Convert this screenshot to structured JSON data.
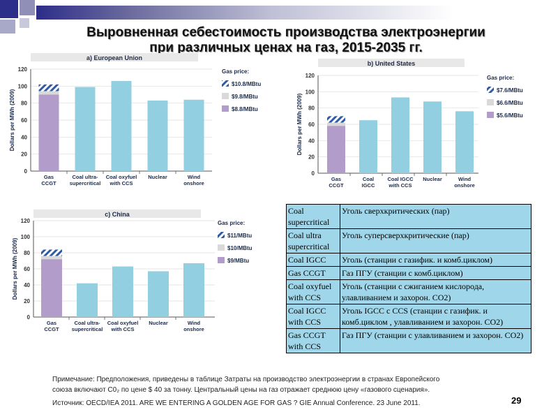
{
  "page": {
    "title_line1": "Выровненная себестоимость производства электроэнергии",
    "title_line2": "при различных ценах на газ, 2015-2035 гг.",
    "note_prefix": "Примечание: Предположения, приведены в таблице Затраты на производство электроэнергии в странах Европейского",
    "note_suffix": "союза включают С0₂ по цене $ 40 за тонну. Центральный цены на газ отражает среднюю цену «газового сценария».",
    "source": "Источник: OECD/IEA 2011. ARE WE ENTERING A GOLDEN AGE FOR GAS ? GIE Annual Conference. 23 June 2011.",
    "page_number": "29"
  },
  "colors": {
    "gas_bar": "#b29cc9",
    "other_bar": "#92cfe0",
    "hatch": "#2e5aa8",
    "mid_band": "#d9d9d9",
    "title_bg": "#e8e8e8"
  },
  "chart_data": [
    {
      "id": "eu",
      "type": "bar",
      "title": "a) European Union",
      "ylabel": "Dollars per MWh (2009)",
      "ylim": [
        0,
        120
      ],
      "yticks": [
        "0",
        "20",
        "40",
        "60",
        "80",
        "100",
        "120"
      ],
      "categories": [
        [
          "Gas",
          "CCGT"
        ],
        [
          "Coal ultra-",
          "supercritical"
        ],
        [
          "Coal oxyfuel",
          "with CCS"
        ],
        [
          "Nuclear"
        ],
        [
          "Wind",
          "onshore"
        ]
      ],
      "values": [
        90,
        99,
        106,
        83,
        84
      ],
      "gas_range": {
        "low": 90,
        "mid": 94,
        "high": 102
      },
      "legend_title": "Gas price:",
      "legend": [
        "$10.8/MBtu",
        "$9.8/MBtu",
        "$8.8/MBtu"
      ]
    },
    {
      "id": "us",
      "type": "bar",
      "title": "b) United States",
      "ylabel": "Dollars per MWh (2009)",
      "ylim": [
        0,
        120
      ],
      "yticks": [
        "0",
        "20",
        "40",
        "60",
        "80",
        "100",
        "120"
      ],
      "categories": [
        [
          "Gas",
          "CCGT"
        ],
        [
          "Coal",
          "IGCC"
        ],
        [
          "Coal IGCC",
          "with CCS"
        ],
        [
          "Nuclear"
        ],
        [
          "Wind",
          "onshore"
        ]
      ],
      "values": [
        58,
        65,
        93,
        88,
        76
      ],
      "gas_range": {
        "low": 58,
        "mid": 62,
        "high": 70
      },
      "legend_title": "Gas price:",
      "legend": [
        "$7.6/MBtu",
        "$6.6/MBtu",
        "$5.6/MBtu"
      ]
    },
    {
      "id": "china",
      "type": "bar",
      "title": "c) China",
      "ylabel": "Dollars per MWh (2009)",
      "ylim": [
        0,
        120
      ],
      "yticks": [
        "0",
        "20",
        "40",
        "60",
        "80",
        "100",
        "120"
      ],
      "categories": [
        [
          "Gas",
          "CCGT"
        ],
        [
          "Coal ultra-",
          "supercritical"
        ],
        [
          "Coal oxyfuel",
          "with CCS"
        ],
        [
          "Nuclear"
        ],
        [
          "Wind",
          "onshore"
        ]
      ],
      "values": [
        72,
        42,
        63,
        57,
        67
      ],
      "gas_range": {
        "low": 72,
        "mid": 76,
        "high": 84
      },
      "legend_title": "Gas price:",
      "legend": [
        "$11/MBtu",
        "$10/MBtu",
        "$9/MBtu"
      ]
    }
  ],
  "definitions": [
    {
      "en": "Coal supercritical",
      "ru": "Уголь сверхкритических (пар)"
    },
    {
      "en": "Coal ultra supercritical",
      "ru": "Уголь суперсверхкритические (пар)"
    },
    {
      "en": "Coal IGCC",
      "ru": "Уголь (станции с газифик. и комб.циклом)"
    },
    {
      "en": "Gas CCGT",
      "ru": "Газ ПГУ (станции с комб.циклом)"
    },
    {
      "en": "Coal oxyfuel with CCS",
      "ru": "Уголь (станции с сжиганием кислорода, улавливанием и захорон. СО2)"
    },
    {
      "en": "Coal IGCC with CCS",
      "ru": "Уголь IGCC с CCS (станции с газифик. и комб.циклом , улавливанием и захорон. СО2)"
    },
    {
      "en": "Gas CCGT with CCS",
      "ru": "Газ ПГУ (станции с улавливанием и захорон. СО2)"
    }
  ]
}
